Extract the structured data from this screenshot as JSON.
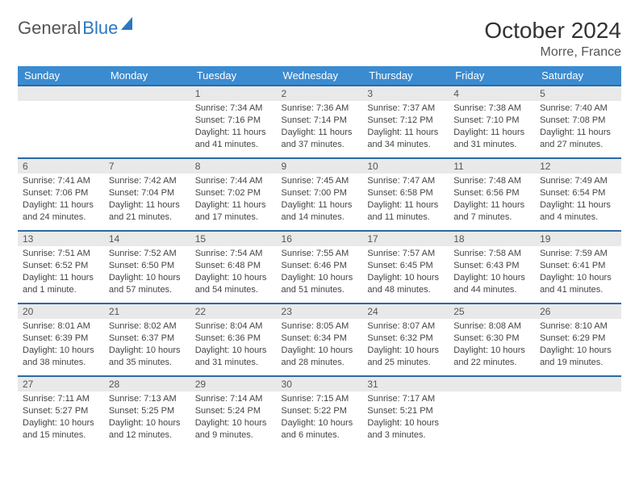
{
  "brand": {
    "part1": "General",
    "part2": "Blue"
  },
  "title": "October 2024",
  "location": "Morre, France",
  "header_bg": "#3b8bd0",
  "header_fg": "#ffffff",
  "daynum_bg": "#e9e9e9",
  "daynum_border": "#2b6aa8",
  "text_color": "#444444",
  "weekdays": [
    "Sunday",
    "Monday",
    "Tuesday",
    "Wednesday",
    "Thursday",
    "Friday",
    "Saturday"
  ],
  "weeks": [
    [
      null,
      null,
      {
        "n": "1",
        "sr": "Sunrise: 7:34 AM",
        "ss": "Sunset: 7:16 PM",
        "dl": "Daylight: 11 hours and 41 minutes."
      },
      {
        "n": "2",
        "sr": "Sunrise: 7:36 AM",
        "ss": "Sunset: 7:14 PM",
        "dl": "Daylight: 11 hours and 37 minutes."
      },
      {
        "n": "3",
        "sr": "Sunrise: 7:37 AM",
        "ss": "Sunset: 7:12 PM",
        "dl": "Daylight: 11 hours and 34 minutes."
      },
      {
        "n": "4",
        "sr": "Sunrise: 7:38 AM",
        "ss": "Sunset: 7:10 PM",
        "dl": "Daylight: 11 hours and 31 minutes."
      },
      {
        "n": "5",
        "sr": "Sunrise: 7:40 AM",
        "ss": "Sunset: 7:08 PM",
        "dl": "Daylight: 11 hours and 27 minutes."
      }
    ],
    [
      {
        "n": "6",
        "sr": "Sunrise: 7:41 AM",
        "ss": "Sunset: 7:06 PM",
        "dl": "Daylight: 11 hours and 24 minutes."
      },
      {
        "n": "7",
        "sr": "Sunrise: 7:42 AM",
        "ss": "Sunset: 7:04 PM",
        "dl": "Daylight: 11 hours and 21 minutes."
      },
      {
        "n": "8",
        "sr": "Sunrise: 7:44 AM",
        "ss": "Sunset: 7:02 PM",
        "dl": "Daylight: 11 hours and 17 minutes."
      },
      {
        "n": "9",
        "sr": "Sunrise: 7:45 AM",
        "ss": "Sunset: 7:00 PM",
        "dl": "Daylight: 11 hours and 14 minutes."
      },
      {
        "n": "10",
        "sr": "Sunrise: 7:47 AM",
        "ss": "Sunset: 6:58 PM",
        "dl": "Daylight: 11 hours and 11 minutes."
      },
      {
        "n": "11",
        "sr": "Sunrise: 7:48 AM",
        "ss": "Sunset: 6:56 PM",
        "dl": "Daylight: 11 hours and 7 minutes."
      },
      {
        "n": "12",
        "sr": "Sunrise: 7:49 AM",
        "ss": "Sunset: 6:54 PM",
        "dl": "Daylight: 11 hours and 4 minutes."
      }
    ],
    [
      {
        "n": "13",
        "sr": "Sunrise: 7:51 AM",
        "ss": "Sunset: 6:52 PM",
        "dl": "Daylight: 11 hours and 1 minute."
      },
      {
        "n": "14",
        "sr": "Sunrise: 7:52 AM",
        "ss": "Sunset: 6:50 PM",
        "dl": "Daylight: 10 hours and 57 minutes."
      },
      {
        "n": "15",
        "sr": "Sunrise: 7:54 AM",
        "ss": "Sunset: 6:48 PM",
        "dl": "Daylight: 10 hours and 54 minutes."
      },
      {
        "n": "16",
        "sr": "Sunrise: 7:55 AM",
        "ss": "Sunset: 6:46 PM",
        "dl": "Daylight: 10 hours and 51 minutes."
      },
      {
        "n": "17",
        "sr": "Sunrise: 7:57 AM",
        "ss": "Sunset: 6:45 PM",
        "dl": "Daylight: 10 hours and 48 minutes."
      },
      {
        "n": "18",
        "sr": "Sunrise: 7:58 AM",
        "ss": "Sunset: 6:43 PM",
        "dl": "Daylight: 10 hours and 44 minutes."
      },
      {
        "n": "19",
        "sr": "Sunrise: 7:59 AM",
        "ss": "Sunset: 6:41 PM",
        "dl": "Daylight: 10 hours and 41 minutes."
      }
    ],
    [
      {
        "n": "20",
        "sr": "Sunrise: 8:01 AM",
        "ss": "Sunset: 6:39 PM",
        "dl": "Daylight: 10 hours and 38 minutes."
      },
      {
        "n": "21",
        "sr": "Sunrise: 8:02 AM",
        "ss": "Sunset: 6:37 PM",
        "dl": "Daylight: 10 hours and 35 minutes."
      },
      {
        "n": "22",
        "sr": "Sunrise: 8:04 AM",
        "ss": "Sunset: 6:36 PM",
        "dl": "Daylight: 10 hours and 31 minutes."
      },
      {
        "n": "23",
        "sr": "Sunrise: 8:05 AM",
        "ss": "Sunset: 6:34 PM",
        "dl": "Daylight: 10 hours and 28 minutes."
      },
      {
        "n": "24",
        "sr": "Sunrise: 8:07 AM",
        "ss": "Sunset: 6:32 PM",
        "dl": "Daylight: 10 hours and 25 minutes."
      },
      {
        "n": "25",
        "sr": "Sunrise: 8:08 AM",
        "ss": "Sunset: 6:30 PM",
        "dl": "Daylight: 10 hours and 22 minutes."
      },
      {
        "n": "26",
        "sr": "Sunrise: 8:10 AM",
        "ss": "Sunset: 6:29 PM",
        "dl": "Daylight: 10 hours and 19 minutes."
      }
    ],
    [
      {
        "n": "27",
        "sr": "Sunrise: 7:11 AM",
        "ss": "Sunset: 5:27 PM",
        "dl": "Daylight: 10 hours and 15 minutes."
      },
      {
        "n": "28",
        "sr": "Sunrise: 7:13 AM",
        "ss": "Sunset: 5:25 PM",
        "dl": "Daylight: 10 hours and 12 minutes."
      },
      {
        "n": "29",
        "sr": "Sunrise: 7:14 AM",
        "ss": "Sunset: 5:24 PM",
        "dl": "Daylight: 10 hours and 9 minutes."
      },
      {
        "n": "30",
        "sr": "Sunrise: 7:15 AM",
        "ss": "Sunset: 5:22 PM",
        "dl": "Daylight: 10 hours and 6 minutes."
      },
      {
        "n": "31",
        "sr": "Sunrise: 7:17 AM",
        "ss": "Sunset: 5:21 PM",
        "dl": "Daylight: 10 hours and 3 minutes."
      },
      null,
      null
    ]
  ]
}
